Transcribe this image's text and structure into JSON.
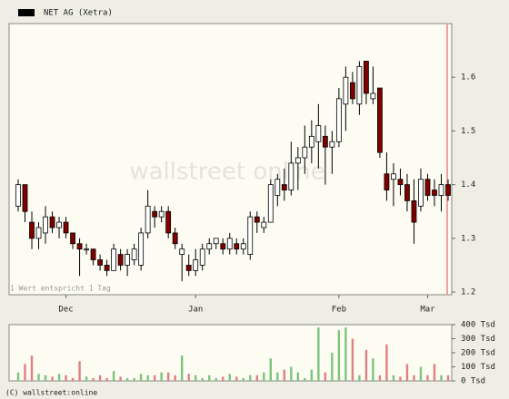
{
  "chart_data": [
    {
      "type": "candlestick",
      "title": "NET AG (Xetra)",
      "note": "1 Wert entspricht 1 Tag",
      "watermark": "wallstreet online",
      "categories": [
        null,
        null,
        null,
        null,
        null,
        null,
        null,
        "Dec",
        null,
        null,
        null,
        null,
        null,
        null,
        null,
        null,
        null,
        null,
        null,
        null,
        null,
        null,
        null,
        null,
        null,
        null,
        "Jan",
        null,
        null,
        null,
        null,
        null,
        null,
        null,
        null,
        null,
        null,
        null,
        null,
        null,
        null,
        null,
        null,
        null,
        null,
        null,
        null,
        "Feb",
        null,
        null,
        null,
        null,
        null,
        null,
        null,
        null,
        null,
        null,
        null,
        null,
        "Mar",
        null,
        null,
        null
      ],
      "open": [
        1.36,
        1.4,
        1.33,
        1.3,
        1.31,
        1.34,
        1.32,
        1.33,
        1.31,
        1.29,
        1.28,
        1.28,
        1.26,
        1.25,
        1.24,
        1.27,
        1.25,
        1.26,
        1.25,
        1.31,
        1.35,
        1.34,
        1.35,
        1.31,
        1.27,
        1.25,
        1.24,
        1.25,
        1.28,
        1.29,
        1.29,
        1.28,
        1.29,
        1.28,
        1.27,
        1.34,
        1.32,
        1.33,
        1.38,
        1.4,
        1.39,
        1.44,
        1.45,
        1.47,
        1.48,
        1.49,
        1.47,
        1.48,
        1.55,
        1.59,
        1.55,
        1.63,
        1.56,
        1.58,
        1.42,
        1.41,
        1.41,
        1.4,
        1.37,
        1.36,
        1.41,
        1.39,
        1.38,
        1.4
      ],
      "high": [
        1.41,
        1.4,
        1.35,
        1.33,
        1.36,
        1.35,
        1.34,
        1.34,
        1.31,
        1.3,
        1.29,
        1.28,
        1.27,
        1.26,
        1.29,
        1.28,
        1.28,
        1.29,
        1.32,
        1.39,
        1.36,
        1.36,
        1.36,
        1.32,
        1.29,
        1.27,
        1.28,
        1.29,
        1.3,
        1.3,
        1.3,
        1.31,
        1.3,
        1.3,
        1.35,
        1.35,
        1.34,
        1.41,
        1.42,
        1.43,
        1.48,
        1.47,
        1.51,
        1.52,
        1.55,
        1.51,
        1.5,
        1.58,
        1.62,
        1.61,
        1.63,
        1.63,
        1.62,
        1.58,
        1.46,
        1.44,
        1.43,
        1.42,
        1.41,
        1.43,
        1.42,
        1.41,
        1.42,
        1.41
      ],
      "low": [
        1.35,
        1.33,
        1.28,
        1.28,
        1.29,
        1.31,
        1.3,
        1.3,
        1.28,
        1.23,
        1.27,
        1.25,
        1.24,
        1.23,
        1.24,
        1.24,
        1.23,
        1.25,
        1.24,
        1.3,
        1.32,
        1.33,
        1.3,
        1.28,
        1.22,
        1.23,
        1.23,
        1.24,
        1.27,
        1.28,
        1.27,
        1.27,
        1.27,
        1.27,
        1.26,
        1.31,
        1.31,
        1.33,
        1.36,
        1.37,
        1.38,
        1.39,
        1.42,
        1.44,
        1.43,
        1.4,
        1.42,
        1.47,
        1.5,
        1.55,
        1.53,
        1.55,
        1.55,
        1.45,
        1.37,
        1.36,
        1.38,
        1.35,
        1.29,
        1.35,
        1.37,
        1.36,
        1.35,
        1.37
      ],
      "close": [
        1.4,
        1.35,
        1.3,
        1.32,
        1.34,
        1.32,
        1.33,
        1.31,
        1.29,
        1.28,
        1.28,
        1.26,
        1.25,
        1.24,
        1.28,
        1.25,
        1.27,
        1.28,
        1.31,
        1.36,
        1.34,
        1.35,
        1.31,
        1.29,
        1.28,
        1.24,
        1.26,
        1.28,
        1.29,
        1.3,
        1.28,
        1.3,
        1.28,
        1.29,
        1.34,
        1.33,
        1.33,
        1.4,
        1.41,
        1.39,
        1.44,
        1.45,
        1.47,
        1.49,
        1.51,
        1.47,
        1.48,
        1.56,
        1.6,
        1.56,
        1.62,
        1.57,
        1.57,
        1.46,
        1.39,
        1.42,
        1.4,
        1.37,
        1.33,
        1.41,
        1.38,
        1.38,
        1.4,
        1.38
      ],
      "up_color": "#ffffff",
      "down_color": "#800000",
      "ylim": [
        1.195,
        1.7
      ],
      "yticks": [
        1.2,
        1.3,
        1.4,
        1.5,
        1.6
      ]
    },
    {
      "type": "bar",
      "values": [
        60,
        120,
        180,
        50,
        40,
        30,
        50,
        40,
        20,
        140,
        30,
        20,
        40,
        20,
        70,
        30,
        20,
        20,
        50,
        40,
        40,
        60,
        60,
        40,
        180,
        50,
        40,
        20,
        40,
        20,
        30,
        50,
        30,
        20,
        40,
        40,
        60,
        160,
        60,
        80,
        100,
        60,
        20,
        80,
        380,
        60,
        200,
        360,
        380,
        300,
        40,
        220,
        160,
        40,
        260,
        40,
        30,
        120,
        40,
        100,
        40,
        120,
        40,
        40
      ],
      "up_color": "#7cc47c",
      "down_color": "#e08080",
      "ylim": [
        0,
        400
      ],
      "yticks": [
        {
          "value": 0,
          "label": "0 Tsd"
        },
        {
          "value": 100,
          "label": "100 Tsd"
        },
        {
          "value": 200,
          "label": "200 Tsd"
        },
        {
          "value": 300,
          "label": "300 Tsd"
        },
        {
          "value": 400,
          "label": "400 Tsd"
        }
      ],
      "footer": "(C) wallstreet:online"
    }
  ]
}
